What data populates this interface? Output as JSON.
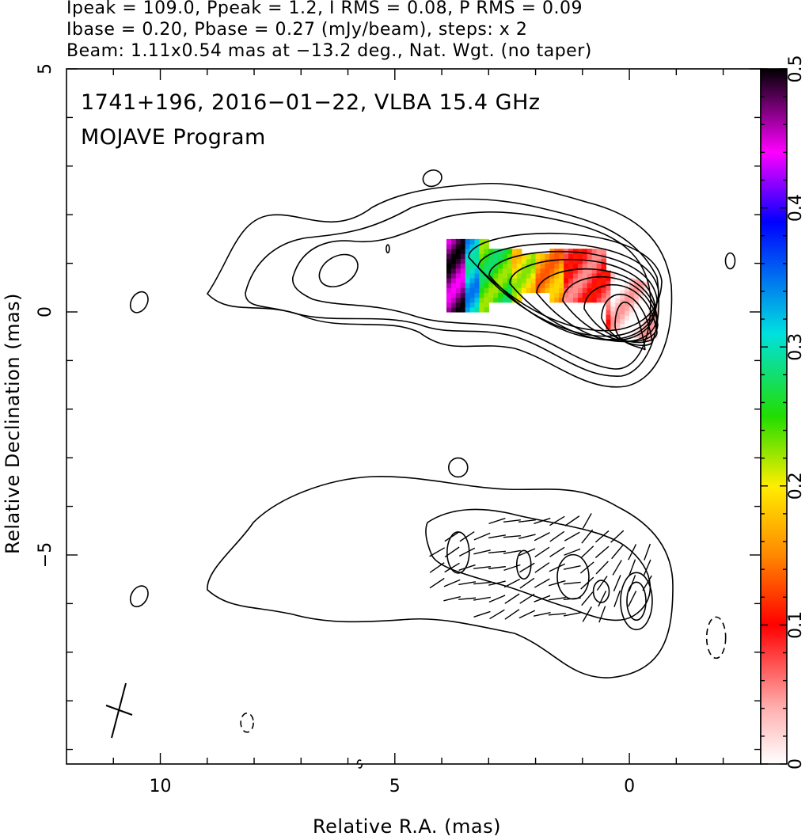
{
  "header": {
    "line1": "Ipeak = 109.0, Ppeak = 1.2, I RMS = 0.08, P RMS = 0.09",
    "line2": "Ibase = 0.20, Pbase = 0.27 (mJy/beam), steps: x 2",
    "line3": "Beam: 1.11x0.54 mas at −13.2 deg., Nat. Wgt. (no taper)"
  },
  "plot_title": {
    "line1": "1741+196, 2016−01−22, VLBA 15.4 GHz",
    "line2": "MOJAVE Program"
  },
  "axes": {
    "xlabel": "Relative R.A. (mas)",
    "ylabel": "Relative Declination (mas)",
    "x_ticks": [
      {
        "v": 10,
        "label": "10"
      },
      {
        "v": 5,
        "label": "5"
      },
      {
        "v": 0,
        "label": "0"
      }
    ],
    "y_ticks": [
      {
        "v": 5,
        "label": "5"
      },
      {
        "v": 0,
        "label": "0"
      },
      {
        "v": -5,
        "label": "−5"
      }
    ],
    "colorbar_ticks": [
      {
        "v": 0.5,
        "label": "0.5"
      },
      {
        "v": 0.4,
        "label": "0.4"
      },
      {
        "v": 0.3,
        "label": "0.3"
      },
      {
        "v": 0.2,
        "label": "0.2"
      },
      {
        "v": 0.1,
        "label": "0.1"
      },
      {
        "v": 0,
        "label": "0"
      }
    ]
  },
  "chart_data": {
    "type": "heatmap",
    "xlim": [
      12.0,
      -2.8
    ],
    "ylim": [
      -9.3,
      5.0
    ],
    "colorbar_range": [
      0,
      0.5
    ],
    "colorbar_orientation": "vertical-right",
    "upper_panel": {
      "core_position": [
        0.0,
        0.0
      ],
      "contour_levels_mJy": [
        0.2,
        0.4,
        0.8,
        1.6,
        3.2,
        6.4,
        12.8,
        25.6,
        51.2
      ],
      "fractional_polarization_bands": [
        {
          "x_range": [
            3.9,
            3.5
          ],
          "value": 0.47
        },
        {
          "x_range": [
            3.5,
            3.2
          ],
          "value": 0.32
        },
        {
          "x_range": [
            3.2,
            2.5
          ],
          "value": 0.25
        },
        {
          "x_range": [
            2.5,
            2.0
          ],
          "value": 0.2
        },
        {
          "x_range": [
            2.0,
            1.4
          ],
          "value": 0.16
        },
        {
          "x_range": [
            1.4,
            0.4
          ],
          "value": 0.08
        },
        {
          "x_range": [
            0.4,
            -0.5
          ],
          "value": 0.02
        }
      ]
    },
    "lower_panel": {
      "offset_dec": -5.5,
      "description_contours": "polarized intensity with EVPA ticks"
    },
    "beam": {
      "major_mas": 1.11,
      "minor_mas": 0.54,
      "pa_deg": -13.2
    }
  }
}
